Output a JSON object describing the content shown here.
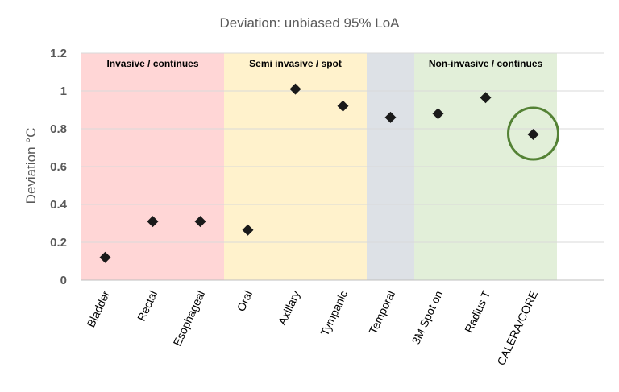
{
  "chart_data": {
    "type": "scatter",
    "title": "Deviation: unbiased 95% LoA",
    "xlabel": "",
    "ylabel": "Deviation °C",
    "ylim": [
      0,
      1.2
    ],
    "yticks": [
      "0",
      "0.2",
      "0.4",
      "0.6",
      "0.8",
      "1",
      "1.2"
    ],
    "grid": true,
    "categories": [
      "Bladder",
      "Rectal",
      "Esophageal",
      "Oral",
      "Axillary",
      "Tympanic",
      "Temporal",
      "3M Spot on",
      "Radius T",
      "CALERA/CORE"
    ],
    "values": [
      0.12,
      0.31,
      0.31,
      0.265,
      1.01,
      0.92,
      0.86,
      0.88,
      0.965,
      0.77
    ],
    "marker_color": "#1a1a1a",
    "regions": [
      {
        "label": "Invasive  / continues",
        "from": 0,
        "to": 3,
        "color": "#ffd6d6"
      },
      {
        "label": "Semi invasive  / spot",
        "from": 3,
        "to": 6,
        "color": "#fff2cc"
      },
      {
        "label": "",
        "from": 6,
        "to": 7,
        "color": "#dde1e6"
      },
      {
        "label": "Non-invasive  / continues",
        "from": 7,
        "to": 10,
        "color": "#e2efd9"
      }
    ],
    "highlight": {
      "category": "CALERA/CORE",
      "color": "#548235"
    }
  }
}
